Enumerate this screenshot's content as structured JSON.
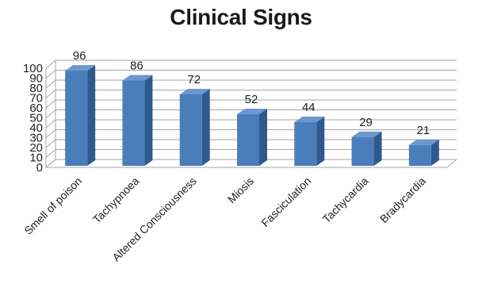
{
  "chart_data": {
    "type": "bar",
    "title": "Clinical Signs",
    "categories": [
      "Smell of poison",
      "Tachypnoea",
      "Altered Consciousness",
      "Miosis",
      "Fasciculation",
      "Tachycardia",
      "Bradycardia"
    ],
    "values": [
      96,
      86,
      72,
      52,
      44,
      29,
      21
    ],
    "data_labels": [
      "96",
      "86",
      "72",
      "52",
      "44",
      "29",
      "21"
    ],
    "ylim": [
      0,
      100
    ],
    "yticks": [
      "0",
      "10",
      "20",
      "30",
      "40",
      "50",
      "60",
      "70",
      "80",
      "90",
      "100"
    ],
    "xlabel": "",
    "ylabel": "",
    "grid": true,
    "legend": "none",
    "style": "3d-column",
    "colors": {
      "bar_front": "#4a7ebb",
      "bar_side": "#2f5a8e",
      "bar_top": "#6c98cf",
      "grid": "#a6a6a6"
    }
  }
}
